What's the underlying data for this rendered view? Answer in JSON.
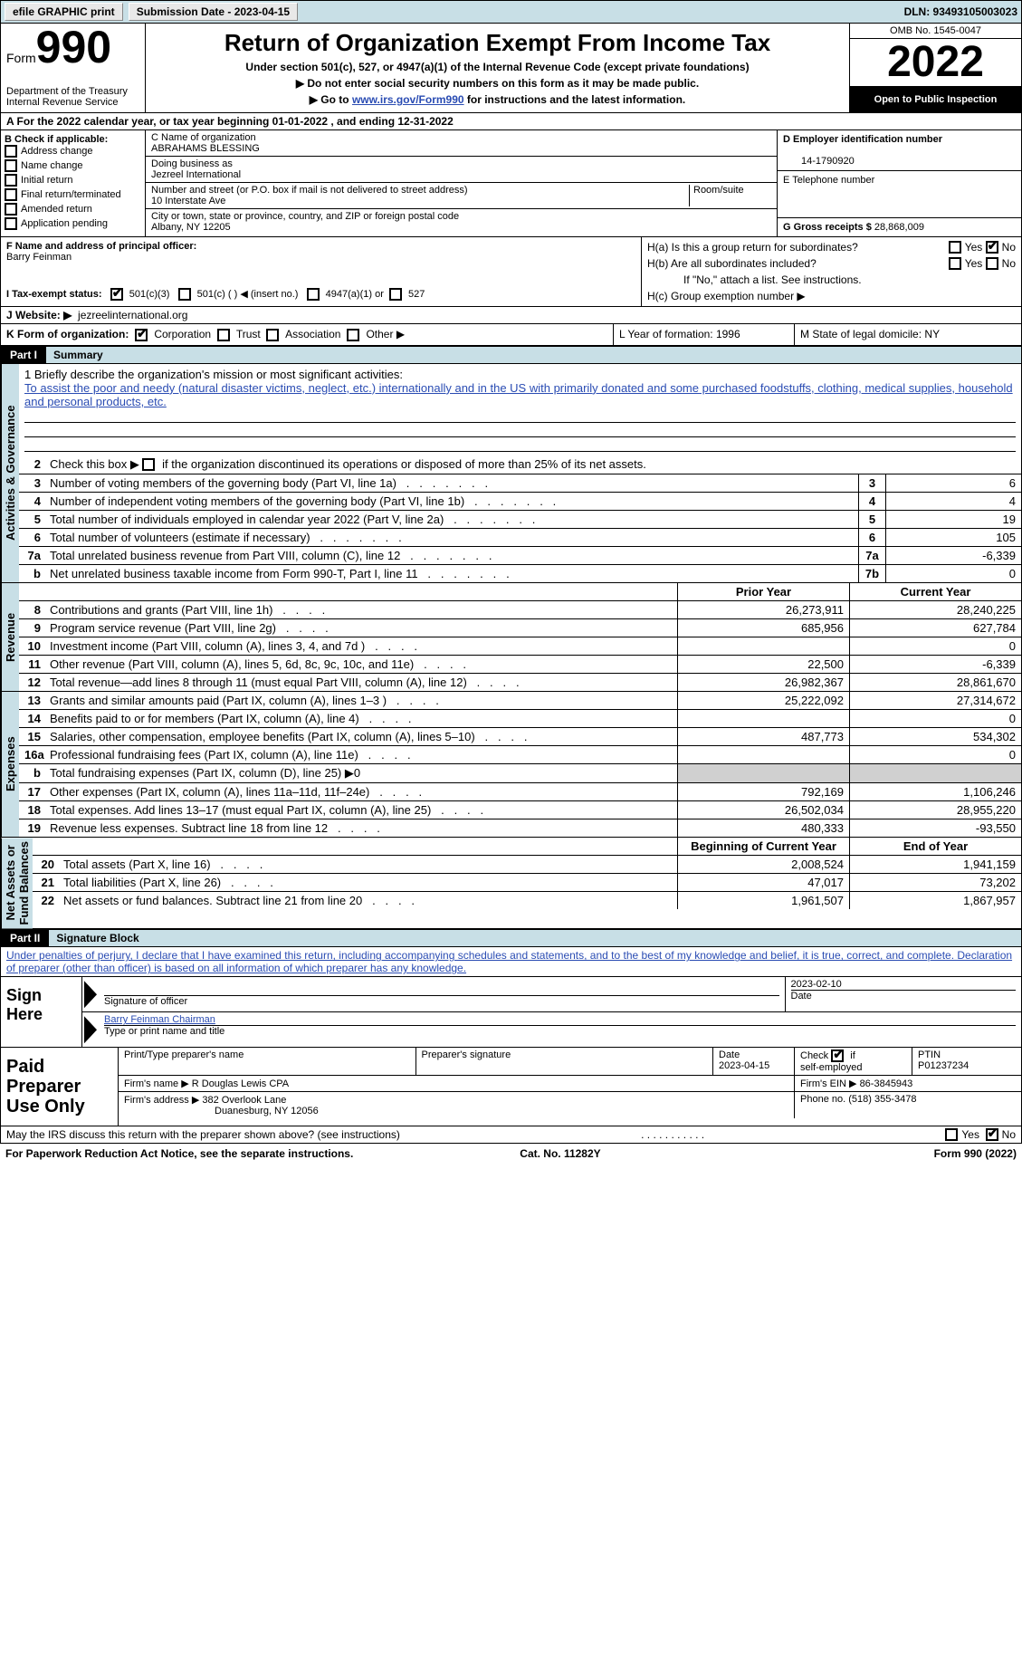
{
  "topbar": {
    "efile": "efile GRAPHIC print",
    "subdate_label": "Submission Date - 2023-04-15",
    "dln": "DLN: 93493105003023"
  },
  "header": {
    "form_word": "Form",
    "form_num": "990",
    "dept": "Department of the Treasury\nInternal Revenue Service",
    "title": "Return of Organization Exempt From Income Tax",
    "sub": "Under section 501(c), 527, or 4947(a)(1) of the Internal Revenue Code (except private foundations)",
    "note1": "▶ Do not enter social security numbers on this form as it may be made public.",
    "note2_pre": "▶ Go to ",
    "note2_link": "www.irs.gov/Form990",
    "note2_post": " for instructions and the latest information.",
    "omb": "OMB No. 1545-0047",
    "year": "2022",
    "open": "Open to Public Inspection"
  },
  "rowA": "A For the 2022 calendar year, or tax year beginning 01-01-2022    , and ending 12-31-2022",
  "colB": {
    "hdr": "B Check if applicable:",
    "items": [
      "Address change",
      "Name change",
      "Initial return",
      "Final return/terminated",
      "Amended return",
      "Application pending"
    ]
  },
  "colC": {
    "name_lbl": "C Name of organization",
    "name": "ABRAHAMS BLESSING",
    "dba_lbl": "Doing business as",
    "dba": "Jezreel International",
    "addr_lbl": "Number and street (or P.O. box if mail is not delivered to street address)",
    "room_lbl": "Room/suite",
    "addr": "10 Interstate Ave",
    "city_lbl": "City or town, state or province, country, and ZIP or foreign postal code",
    "city": "Albany, NY  12205"
  },
  "colDE": {
    "d_lbl": "D Employer identification number",
    "d_val": "14-1790920",
    "e_lbl": "E Telephone number",
    "g_lbl": "G Gross receipts $",
    "g_val": "28,868,009"
  },
  "fh": {
    "f_lbl": "F Name and address of principal officer:",
    "f_val": "Barry Feinman",
    "ha": "H(a)  Is this a group return for subordinates?",
    "hb": "H(b)  Are all subordinates included?",
    "hb_note": "If \"No,\" attach a list. See instructions.",
    "hc": "H(c)  Group exemption number ▶",
    "yes": "Yes",
    "no": "No"
  },
  "taxexempt": {
    "lbl": "I    Tax-exempt status:",
    "o1": "501(c)(3)",
    "o2": "501(c) (  ) ◀ (insert no.)",
    "o3": "4947(a)(1) or",
    "o4": "527"
  },
  "website": {
    "lbl": "J   Website: ▶",
    "val": "jezreelinternational.org"
  },
  "rowK": {
    "k": "K Form of organization:",
    "corp": "Corporation",
    "trust": "Trust",
    "assoc": "Association",
    "other": "Other ▶",
    "l": "L Year of formation: 1996",
    "m": "M State of legal domicile: NY"
  },
  "parts": {
    "p1": "Part I",
    "p1t": "Summary",
    "p2": "Part II",
    "p2t": "Signature Block"
  },
  "vtabs": {
    "ag": "Activities & Governance",
    "rev": "Revenue",
    "exp": "Expenses",
    "na": "Net Assets or\nFund Balances"
  },
  "mission": {
    "lbl": "1   Briefly describe the organization's mission or most significant activities:",
    "text": "To assist the poor and needy (natural disaster victims, neglect, etc.) internationally and in the US with primarily donated and some purchased foodstuffs, clothing, medical supplies, household and personal products, etc."
  },
  "line2": "Check this box ▶          if the organization discontinued its operations or disposed of more than 25% of its net assets.",
  "lines_ag": [
    {
      "n": "3",
      "d": "Number of voting members of the governing body (Part VI, line 1a)",
      "bn": "3",
      "v": "6"
    },
    {
      "n": "4",
      "d": "Number of independent voting members of the governing body (Part VI, line 1b)",
      "bn": "4",
      "v": "4"
    },
    {
      "n": "5",
      "d": "Total number of individuals employed in calendar year 2022 (Part V, line 2a)",
      "bn": "5",
      "v": "19"
    },
    {
      "n": "6",
      "d": "Total number of volunteers (estimate if necessary)",
      "bn": "6",
      "v": "105"
    },
    {
      "n": "7a",
      "d": "Total unrelated business revenue from Part VIII, column (C), line 12",
      "bn": "7a",
      "v": "-6,339"
    },
    {
      "n": "b",
      "d": "Net unrelated business taxable income from Form 990-T, Part I, line 11",
      "bn": "7b",
      "v": "0"
    }
  ],
  "col_hdrs": {
    "py": "Prior Year",
    "cy": "Current Year",
    "bcy": "Beginning of Current Year",
    "eoy": "End of Year"
  },
  "lines_rev": [
    {
      "n": "8",
      "d": "Contributions and grants (Part VIII, line 1h)",
      "py": "26,273,911",
      "cy": "28,240,225"
    },
    {
      "n": "9",
      "d": "Program service revenue (Part VIII, line 2g)",
      "py": "685,956",
      "cy": "627,784"
    },
    {
      "n": "10",
      "d": "Investment income (Part VIII, column (A), lines 3, 4, and 7d )",
      "py": "",
      "cy": "0"
    },
    {
      "n": "11",
      "d": "Other revenue (Part VIII, column (A), lines 5, 6d, 8c, 9c, 10c, and 11e)",
      "py": "22,500",
      "cy": "-6,339"
    },
    {
      "n": "12",
      "d": "Total revenue—add lines 8 through 11 (must equal Part VIII, column (A), line 12)",
      "py": "26,982,367",
      "cy": "28,861,670"
    }
  ],
  "lines_exp": [
    {
      "n": "13",
      "d": "Grants and similar amounts paid (Part IX, column (A), lines 1–3 )",
      "py": "25,222,092",
      "cy": "27,314,672"
    },
    {
      "n": "14",
      "d": "Benefits paid to or for members (Part IX, column (A), line 4)",
      "py": "",
      "cy": "0"
    },
    {
      "n": "15",
      "d": "Salaries, other compensation, employee benefits (Part IX, column (A), lines 5–10)",
      "py": "487,773",
      "cy": "534,302"
    },
    {
      "n": "16a",
      "d": "Professional fundraising fees (Part IX, column (A), line 11e)",
      "py": "",
      "cy": "0"
    },
    {
      "n": "b",
      "d": "Total fundraising expenses (Part IX, column (D), line 25) ▶0",
      "gray": true
    },
    {
      "n": "17",
      "d": "Other expenses (Part IX, column (A), lines 11a–11d, 11f–24e)",
      "py": "792,169",
      "cy": "1,106,246"
    },
    {
      "n": "18",
      "d": "Total expenses. Add lines 13–17 (must equal Part IX, column (A), line 25)",
      "py": "26,502,034",
      "cy": "28,955,220"
    },
    {
      "n": "19",
      "d": "Revenue less expenses. Subtract line 18 from line 12",
      "py": "480,333",
      "cy": "-93,550"
    }
  ],
  "lines_na": [
    {
      "n": "20",
      "d": "Total assets (Part X, line 16)",
      "py": "2,008,524",
      "cy": "1,941,159"
    },
    {
      "n": "21",
      "d": "Total liabilities (Part X, line 26)",
      "py": "47,017",
      "cy": "73,202"
    },
    {
      "n": "22",
      "d": "Net assets or fund balances. Subtract line 21 from line 20",
      "py": "1,961,507",
      "cy": "1,867,957"
    }
  ],
  "penalties": "Under penalties of perjury, I declare that I have examined this return, including accompanying schedules and statements, and to the best of my knowledge and belief, it is true, correct, and complete. Declaration of preparer (other than officer) is based on all information of which preparer has any knowledge.",
  "sign": {
    "left": "Sign Here",
    "sig_lbl": "Signature of officer",
    "date_lbl": "Date",
    "date": "2023-02-10",
    "name": "Barry Feinman  Chairman",
    "name_lbl": "Type or print name and title"
  },
  "prep": {
    "left": "Paid Preparer Use Only",
    "pname_lbl": "Print/Type preparer's name",
    "psig_lbl": "Preparer's signature",
    "pdate_lbl": "Date",
    "pdate": "2023-04-15",
    "check_lbl": "Check          if self-employed",
    "ptin_lbl": "PTIN",
    "ptin": "P01237234",
    "firm_lbl": "Firm's name     ▶",
    "firm": "R Douglas Lewis CPA",
    "ein_lbl": "Firm's EIN ▶",
    "ein": "86-3845943",
    "addr_lbl": "Firm's address ▶",
    "addr1": "382 Overlook Lane",
    "addr2": "Duanesburg, NY  12056",
    "phone_lbl": "Phone no.",
    "phone": "(518) 355-3478"
  },
  "discuss": "May the IRS discuss this return with the preparer shown above? (see instructions)",
  "footer": {
    "pra": "For Paperwork Reduction Act Notice, see the separate instructions.",
    "cat": "Cat. No. 11282Y",
    "form": "Form 990 (2022)"
  }
}
